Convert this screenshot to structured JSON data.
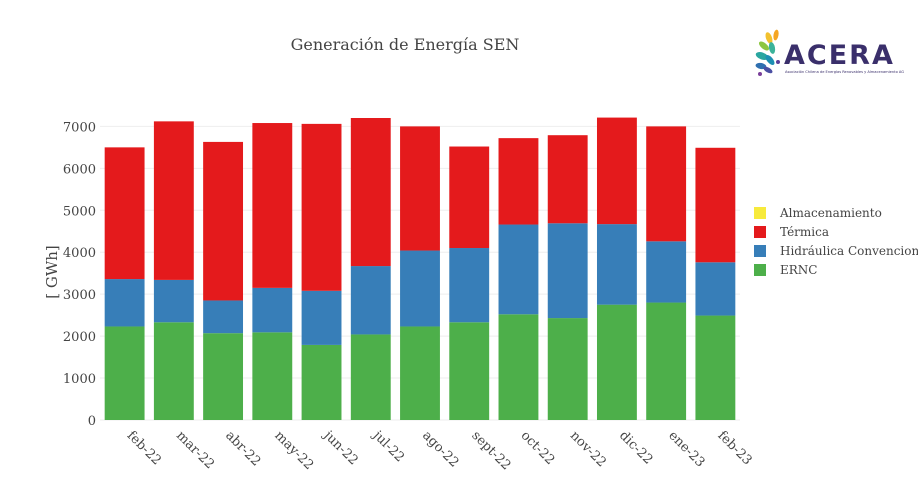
{
  "logo": {
    "word": "ACERA",
    "subtitle": "Asociación Chilena de Energías Renovables y Almacenamiento AG"
  },
  "chart_data": {
    "type": "bar",
    "stacked": true,
    "title": "Generación de Energía SEN",
    "xlabel": "",
    "ylabel": "[ GWh]",
    "ylim": [
      0,
      7200
    ],
    "yticks": [
      0,
      1000,
      2000,
      3000,
      4000,
      5000,
      6000,
      7000
    ],
    "grid": true,
    "legend_position": "right",
    "categories": [
      "feb-22",
      "mar-22",
      "abr-22",
      "may-22",
      "jun-22",
      "jul-22",
      "ago-22",
      "sept-22",
      "oct-22",
      "nov-22",
      "dic-22",
      "ene-23",
      "feb-23"
    ],
    "series": [
      {
        "name": "ERNC",
        "color": "#4daf4a",
        "values": [
          2230,
          2330,
          2070,
          2090,
          1790,
          2040,
          2230,
          2330,
          2520,
          2430,
          2750,
          2800,
          2490
        ]
      },
      {
        "name": "Hidráulica Convencional",
        "color": "#377eb8",
        "values": [
          1130,
          1010,
          780,
          1060,
          1290,
          1630,
          1810,
          1770,
          2140,
          2260,
          1920,
          1460,
          1270
        ]
      },
      {
        "name": "Térmica",
        "color": "#e41a1c",
        "values": [
          3140,
          3780,
          3780,
          3930,
          3980,
          3530,
          2960,
          2420,
          2060,
          2100,
          2540,
          2740,
          2730
        ]
      },
      {
        "name": "Almacenamiento",
        "color": "#f7ea3c",
        "values": [
          0,
          0,
          0,
          0,
          0,
          0,
          0,
          0,
          0,
          0,
          0,
          0,
          0
        ]
      }
    ],
    "legend_order": [
      "Almacenamiento",
      "Térmica",
      "Hidráulica Convencional",
      "ERNC"
    ]
  }
}
